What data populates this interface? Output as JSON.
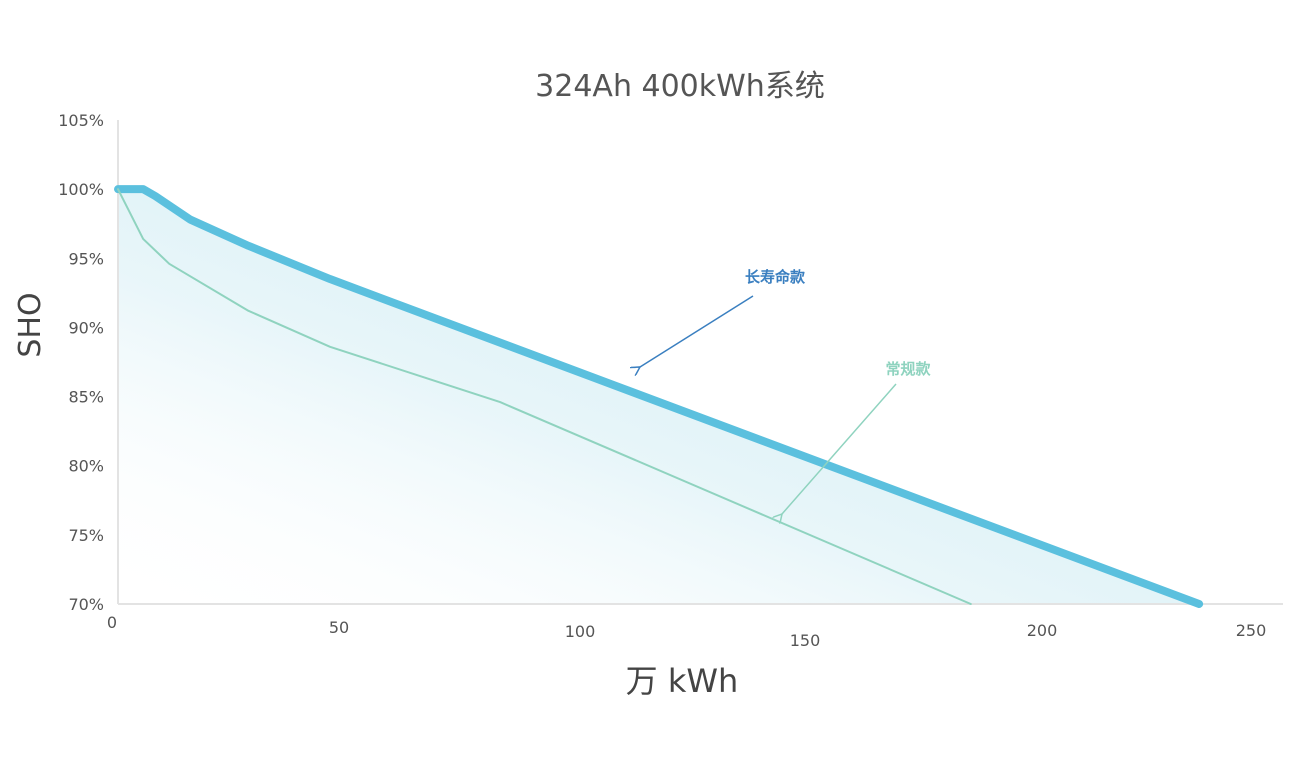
{
  "chart_data": {
    "type": "line",
    "title": "324Ah 400kWh系统",
    "xlabel": "万 kWh",
    "ylabel": "SHO",
    "xlim": [
      0,
      250
    ],
    "ylim": [
      70,
      105
    ],
    "x_ticks": [
      "0",
      "50",
      "100",
      "150",
      "200",
      "250"
    ],
    "y_ticks": [
      "70%",
      "75%",
      "80%",
      "85%",
      "90%",
      "95%",
      "100%",
      "105%"
    ],
    "grid": false,
    "series": [
      {
        "name": "长寿命款",
        "color": "#5bc0de",
        "x": [
          0,
          5.4,
          8,
          15.5,
          28,
          45.5,
          232
        ],
        "y": [
          100,
          100,
          99.5,
          97.8,
          95.9,
          93.5,
          70
        ]
      },
      {
        "name": "常规款",
        "color": "#8fd3bf",
        "x": [
          0,
          5.4,
          11,
          28,
          45.5,
          82,
          183
        ],
        "y": [
          100,
          96.4,
          94.6,
          91.2,
          88.6,
          84.6,
          70
        ]
      }
    ],
    "annotations": [
      {
        "text": "长寿命款",
        "color": "#3a7fc0"
      },
      {
        "text": "常规款",
        "color": "#8fd3bf"
      }
    ]
  }
}
